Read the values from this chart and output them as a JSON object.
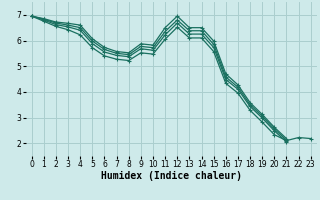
{
  "xlabel": "Humidex (Indice chaleur)",
  "bg_color": "#ceeaea",
  "grid_color": "#aacece",
  "line_color": "#1a7060",
  "xlim": [
    -0.5,
    23.5
  ],
  "ylim": [
    1.5,
    7.5
  ],
  "yticks": [
    2,
    3,
    4,
    5,
    6,
    7
  ],
  "xticks": [
    0,
    1,
    2,
    3,
    4,
    5,
    6,
    7,
    8,
    9,
    10,
    11,
    12,
    13,
    14,
    15,
    16,
    17,
    18,
    19,
    20,
    21,
    22,
    23
  ],
  "series": [
    {
      "x": [
        0,
        1,
        2,
        3,
        4,
        5,
        6,
        7,
        8,
        9,
        10,
        11,
        12,
        13,
        14,
        15,
        16,
        17,
        18,
        19,
        20,
        21
      ],
      "y": [
        6.95,
        6.85,
        6.72,
        6.67,
        6.6,
        6.07,
        5.73,
        5.57,
        5.52,
        5.87,
        5.82,
        6.5,
        6.95,
        6.5,
        6.5,
        5.98,
        4.7,
        4.27,
        3.58,
        3.12,
        2.62,
        2.18
      ]
    },
    {
      "x": [
        0,
        1,
        2,
        3,
        4,
        5,
        6,
        7,
        8,
        9,
        10,
        11,
        12,
        13,
        14,
        15,
        16,
        17,
        18,
        19,
        20,
        21
      ],
      "y": [
        6.95,
        6.83,
        6.68,
        6.6,
        6.5,
        5.98,
        5.65,
        5.5,
        5.45,
        5.77,
        5.72,
        6.35,
        6.8,
        6.38,
        6.38,
        5.85,
        4.58,
        4.18,
        3.5,
        3.05,
        2.55,
        2.12
      ]
    },
    {
      "x": [
        0,
        1,
        2,
        3,
        4,
        5,
        6,
        7,
        8,
        9,
        10,
        11,
        12,
        13,
        14,
        15,
        16,
        17,
        18,
        19,
        20,
        21
      ],
      "y": [
        6.95,
        6.8,
        6.62,
        6.53,
        6.4,
        5.88,
        5.55,
        5.42,
        5.37,
        5.68,
        5.62,
        6.22,
        6.68,
        6.25,
        6.25,
        5.73,
        4.48,
        4.1,
        3.43,
        2.98,
        2.48,
        2.05
      ]
    },
    {
      "x": [
        0,
        1,
        2,
        3,
        4,
        5,
        6,
        7,
        8,
        9,
        10,
        11,
        12,
        13,
        14,
        15,
        16,
        17,
        18,
        19,
        20,
        21,
        22,
        23
      ],
      "y": [
        6.95,
        6.75,
        6.55,
        6.42,
        6.22,
        5.72,
        5.4,
        5.27,
        5.22,
        5.52,
        5.47,
        6.05,
        6.52,
        6.1,
        6.1,
        5.57,
        4.33,
        3.95,
        3.28,
        2.82,
        2.33,
        2.1,
        2.22,
        2.18
      ]
    }
  ],
  "marker": "+",
  "markersize": 3,
  "linewidth": 0.9,
  "xlabel_fontsize": 7,
  "tick_fontsize": 5.5
}
